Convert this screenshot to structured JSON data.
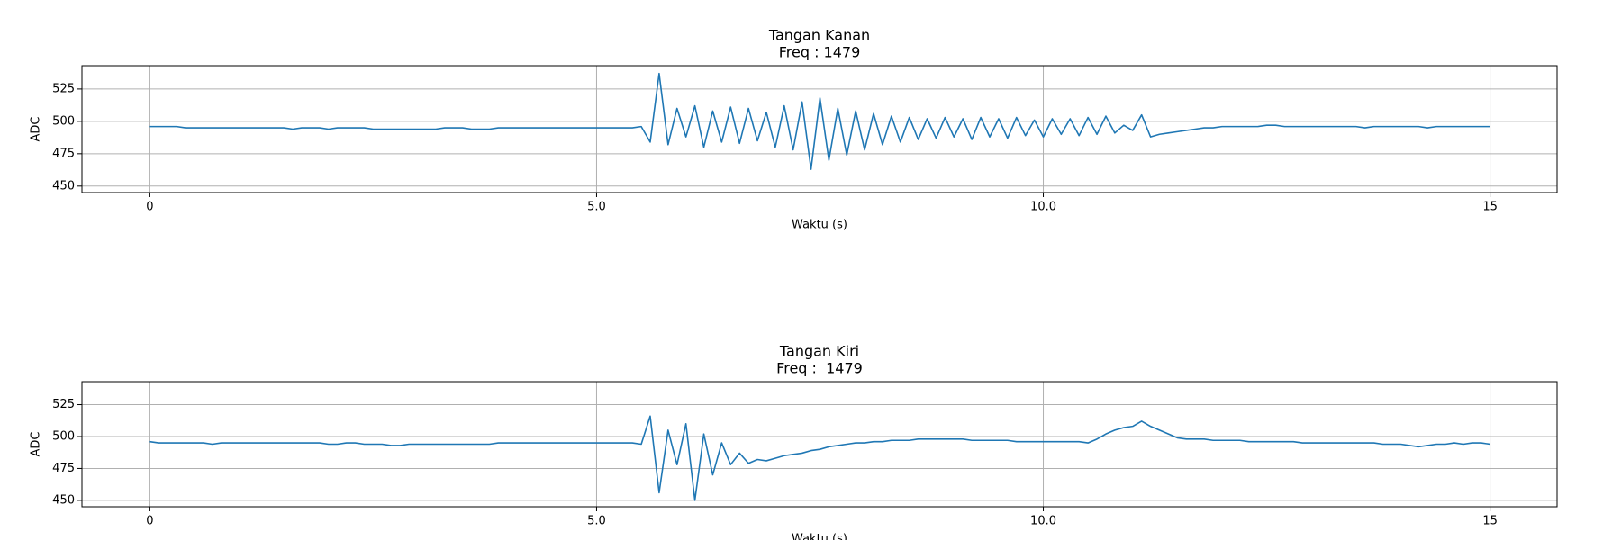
{
  "chart_data": [
    {
      "type": "line",
      "title": "Tangan Kanan",
      "subtitle": "Freq : 1479",
      "x_label": "Waktu (s)",
      "y_label": "ADC",
      "color": "#1f77b4",
      "grid": true,
      "xlim": [
        -0.76,
        15.75
      ],
      "ylim": [
        445,
        543
      ],
      "xticks": [
        0,
        {
          "value": 5,
          "label": "5.0"
        },
        {
          "value": 10,
          "label": "10.0"
        },
        15
      ],
      "yticks": [
        450,
        475,
        500,
        525
      ],
      "x": [
        0,
        0.1,
        0.2,
        0.3,
        0.4,
        0.5,
        0.6,
        0.7,
        0.8,
        0.9,
        1,
        1.1,
        1.2,
        1.3,
        1.4,
        1.5,
        1.6,
        1.7,
        1.8,
        1.9,
        2,
        2.1,
        2.2,
        2.3,
        2.4,
        2.5,
        2.6,
        2.7,
        2.8,
        2.9,
        3,
        3.1,
        3.2,
        3.3,
        3.4,
        3.5,
        3.6,
        3.7,
        3.8,
        3.9,
        4,
        4.1,
        4.2,
        4.3,
        4.4,
        4.5,
        4.6,
        4.7,
        4.8,
        4.9,
        5,
        5.1,
        5.2,
        5.3,
        5.4,
        5.5,
        5.6,
        5.7,
        5.8,
        5.9,
        6,
        6.1,
        6.2,
        6.3,
        6.4,
        6.5,
        6.6,
        6.7,
        6.8,
        6.9,
        7,
        7.1,
        7.2,
        7.3,
        7.4,
        7.5,
        7.6,
        7.7,
        7.8,
        7.9,
        8,
        8.1,
        8.2,
        8.3,
        8.4,
        8.5,
        8.6,
        8.7,
        8.8,
        8.9,
        9,
        9.1,
        9.2,
        9.3,
        9.4,
        9.5,
        9.6,
        9.7,
        9.8,
        9.9,
        10,
        10.1,
        10.2,
        10.3,
        10.4,
        10.5,
        10.6,
        10.7,
        10.8,
        10.9,
        11,
        11.1,
        11.2,
        11.3,
        11.4,
        11.5,
        11.6,
        11.7,
        11.8,
        11.9,
        12,
        12.1,
        12.2,
        12.3,
        12.4,
        12.5,
        12.6,
        12.7,
        12.8,
        12.9,
        13,
        13.1,
        13.2,
        13.3,
        13.4,
        13.5,
        13.6,
        13.7,
        13.8,
        13.9,
        14,
        14.1,
        14.2,
        14.3,
        14.4,
        14.5,
        14.6,
        14.7,
        14.8,
        14.9,
        15
      ],
      "values": [
        496,
        496,
        496,
        496,
        495,
        495,
        495,
        495,
        495,
        495,
        495,
        495,
        495,
        495,
        495,
        495,
        494,
        495,
        495,
        495,
        494,
        495,
        495,
        495,
        495,
        494,
        494,
        494,
        494,
        494,
        494,
        494,
        494,
        495,
        495,
        495,
        494,
        494,
        494,
        495,
        495,
        495,
        495,
        495,
        495,
        495,
        495,
        495,
        495,
        495,
        495,
        495,
        495,
        495,
        495,
        496,
        484,
        537,
        482,
        510,
        488,
        512,
        480,
        508,
        484,
        511,
        483,
        510,
        485,
        507,
        480,
        512,
        478,
        515,
        463,
        518,
        470,
        510,
        474,
        508,
        478,
        506,
        482,
        504,
        484,
        503,
        486,
        502,
        487,
        503,
        488,
        502,
        486,
        503,
        488,
        502,
        487,
        503,
        489,
        501,
        488,
        502,
        490,
        502,
        489,
        503,
        490,
        504,
        491,
        497,
        493,
        505,
        488,
        490,
        491,
        492,
        493,
        494,
        495,
        495,
        496,
        496,
        496,
        496,
        496,
        497,
        497,
        496,
        496,
        496,
        496,
        496,
        496,
        496,
        496,
        496,
        495,
        496,
        496,
        496,
        496,
        496,
        496,
        495,
        496,
        496,
        496,
        496,
        496,
        496,
        496
      ]
    },
    {
      "type": "line",
      "title": "Tangan Kiri",
      "subtitle": "Freq :  1479",
      "x_label": "Waktu (s)",
      "y_label": "ADC",
      "color": "#1f77b4",
      "grid": true,
      "xlim": [
        -0.76,
        15.75
      ],
      "ylim": [
        445,
        543
      ],
      "xticks": [
        0,
        {
          "value": 5,
          "label": "5.0"
        },
        {
          "value": 10,
          "label": "10.0"
        },
        15
      ],
      "yticks": [
        450,
        475,
        500,
        525
      ],
      "x": [
        0,
        0.1,
        0.2,
        0.3,
        0.4,
        0.5,
        0.6,
        0.7,
        0.8,
        0.9,
        1,
        1.1,
        1.2,
        1.3,
        1.4,
        1.5,
        1.6,
        1.7,
        1.8,
        1.9,
        2,
        2.1,
        2.2,
        2.3,
        2.4,
        2.5,
        2.6,
        2.7,
        2.8,
        2.9,
        3,
        3.1,
        3.2,
        3.3,
        3.4,
        3.5,
        3.6,
        3.7,
        3.8,
        3.9,
        4,
        4.1,
        4.2,
        4.3,
        4.4,
        4.5,
        4.6,
        4.7,
        4.8,
        4.9,
        5,
        5.1,
        5.2,
        5.3,
        5.4,
        5.5,
        5.6,
        5.7,
        5.8,
        5.9,
        6,
        6.1,
        6.2,
        6.3,
        6.4,
        6.5,
        6.6,
        6.7,
        6.8,
        6.9,
        7,
        7.1,
        7.2,
        7.3,
        7.4,
        7.5,
        7.6,
        7.7,
        7.8,
        7.9,
        8,
        8.1,
        8.2,
        8.3,
        8.4,
        8.5,
        8.6,
        8.7,
        8.8,
        8.9,
        9,
        9.1,
        9.2,
        9.3,
        9.4,
        9.5,
        9.6,
        9.7,
        9.8,
        9.9,
        10,
        10.1,
        10.2,
        10.3,
        10.4,
        10.5,
        10.6,
        10.7,
        10.8,
        10.9,
        11,
        11.1,
        11.2,
        11.3,
        11.4,
        11.5,
        11.6,
        11.7,
        11.8,
        11.9,
        12,
        12.1,
        12.2,
        12.3,
        12.4,
        12.5,
        12.6,
        12.7,
        12.8,
        12.9,
        13,
        13.1,
        13.2,
        13.3,
        13.4,
        13.5,
        13.6,
        13.7,
        13.8,
        13.9,
        14,
        14.1,
        14.2,
        14.3,
        14.4,
        14.5,
        14.6,
        14.7,
        14.8,
        14.9,
        15
      ],
      "values": [
        496,
        495,
        495,
        495,
        495,
        495,
        495,
        494,
        495,
        495,
        495,
        495,
        495,
        495,
        495,
        495,
        495,
        495,
        495,
        495,
        494,
        494,
        495,
        495,
        494,
        494,
        494,
        493,
        493,
        494,
        494,
        494,
        494,
        494,
        494,
        494,
        494,
        494,
        494,
        495,
        495,
        495,
        495,
        495,
        495,
        495,
        495,
        495,
        495,
        495,
        495,
        495,
        495,
        495,
        495,
        494,
        516,
        456,
        505,
        478,
        510,
        450,
        502,
        470,
        495,
        478,
        487,
        479,
        482,
        481,
        483,
        485,
        486,
        487,
        489,
        490,
        492,
        493,
        494,
        495,
        495,
        496,
        496,
        497,
        497,
        497,
        498,
        498,
        498,
        498,
        498,
        498,
        497,
        497,
        497,
        497,
        497,
        496,
        496,
        496,
        496,
        496,
        496,
        496,
        496,
        495,
        498,
        502,
        505,
        507,
        508,
        512,
        508,
        505,
        502,
        499,
        498,
        498,
        498,
        497,
        497,
        497,
        497,
        496,
        496,
        496,
        496,
        496,
        496,
        495,
        495,
        495,
        495,
        495,
        495,
        495,
        495,
        495,
        494,
        494,
        494,
        493,
        492,
        493,
        494,
        494,
        495,
        494,
        495,
        495,
        494
      ]
    }
  ]
}
